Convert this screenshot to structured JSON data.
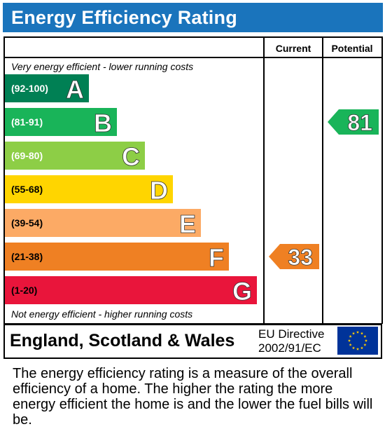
{
  "header": {
    "title": "Energy Efficiency Rating"
  },
  "chart_data": {
    "type": "bar",
    "columns": {
      "current": "Current",
      "potential": "Potential"
    },
    "top_note": "Very energy efficient - lower running costs",
    "bottom_note": "Not energy efficient - higher running costs",
    "bands": [
      {
        "letter": "A",
        "range": "(92-100)",
        "color": "#008054"
      },
      {
        "letter": "B",
        "range": "(81-91)",
        "color": "#19b459"
      },
      {
        "letter": "C",
        "range": "(69-80)",
        "color": "#8dce46"
      },
      {
        "letter": "D",
        "range": "(55-68)",
        "color": "#ffd500"
      },
      {
        "letter": "E",
        "range": "(39-54)",
        "color": "#fcaa65"
      },
      {
        "letter": "F",
        "range": "(21-38)",
        "color": "#ef8023"
      },
      {
        "letter": "G",
        "range": "(1-20)",
        "color": "#e9153b"
      }
    ],
    "current": {
      "value": "33",
      "band": "F",
      "color": "#ef8023"
    },
    "potential": {
      "value": "81",
      "band": "B",
      "color": "#19b459"
    }
  },
  "footer": {
    "region": "England, Scotland & Wales",
    "directive_line1": "EU Directive",
    "directive_line2": "2002/91/EC",
    "flag_icon": "eu-flag-icon"
  },
  "description": "The energy efficiency rating is a measure of the overall efficiency of a home. The higher the rating the more energy efficient the home is and the lower the fuel bills will be."
}
